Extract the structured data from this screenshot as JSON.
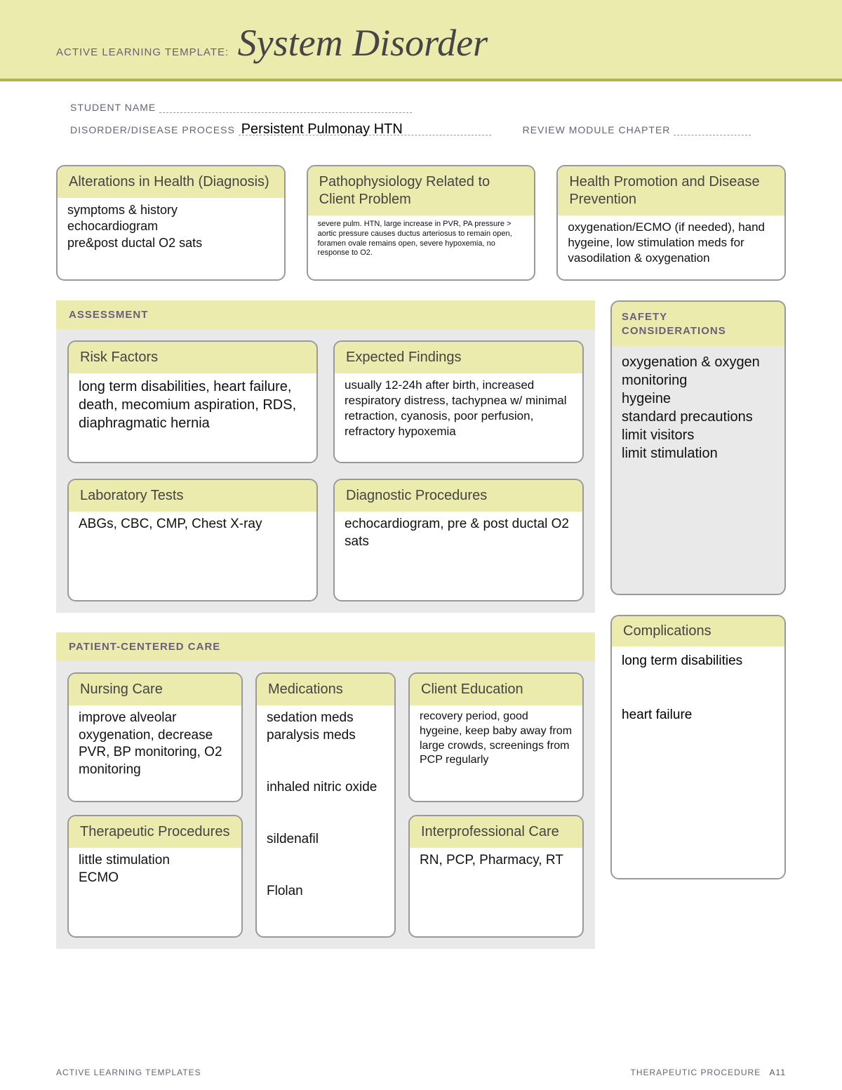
{
  "colors": {
    "band_bg": "#ecebae",
    "band_border": "#b5b34f",
    "section_bg": "#e9e9e9",
    "box_border": "#999999",
    "label_text": "#6a5f7a",
    "title_text": "#454545",
    "body_text": "#111111"
  },
  "header": {
    "prefix": "ACTIVE LEARNING TEMPLATE:",
    "title": "System Disorder"
  },
  "meta": {
    "student_label": "STUDENT NAME",
    "student_value": "",
    "disorder_label": "DISORDER/DISEASE PROCESS",
    "disorder_value": "Persistent Pulmonay HTN",
    "review_label": "REVIEW MODULE CHAPTER",
    "review_value": ""
  },
  "top": {
    "alterations": {
      "title": "Alterations in Health (Diagnosis)",
      "body": "symptoms & history\nechocardiogram\npre&post ductal O2 sats"
    },
    "patho": {
      "title": "Pathophysiology Related to Client Problem",
      "body": "severe pulm. HTN, large increase in PVR, PA pressure > aortic pressure causes ductus arteriosus to remain open, foramen ovale remains open, severe hypoxemia, no response to O2."
    },
    "promotion": {
      "title": "Health Promotion and Disease Prevention",
      "body": "oxygenation/ECMO (if needed), hand hygeine, low stimulation meds for vasodilation & oxygenation"
    }
  },
  "assessment": {
    "section_title": "ASSESSMENT",
    "risk": {
      "title": "Risk Factors",
      "body": "long term disabilities, heart failure, death, mecomium aspiration, RDS, diaphragmatic hernia"
    },
    "expected": {
      "title": "Expected Findings",
      "body": "usually 12-24h after birth, increased respiratory distress, tachypnea w/ minimal retraction, cyanosis, poor perfusion, refractory hypoxemia"
    },
    "labs": {
      "title": "Laboratory Tests",
      "body": "ABGs, CBC, CMP, Chest X-ray"
    },
    "diag": {
      "title": "Diagnostic Procedures",
      "body": "echocardiogram, pre & post ductal O2 sats"
    }
  },
  "pcc": {
    "section_title": "PATIENT-CENTERED CARE",
    "nursing": {
      "title": "Nursing Care",
      "body": "improve alveolar oxygenation, decrease PVR, BP monitoring, O2 monitoring"
    },
    "therapeutic": {
      "title": "Therapeutic Procedures",
      "body": "little stimulation\nECMO"
    },
    "meds": {
      "title": "Medications",
      "body": "sedation meds\nparalysis meds\n\ninhaled nitric oxide\n\nsildenafil\n\nFlolan"
    },
    "education": {
      "title": "Client Education",
      "body": "recovery period, good hygeine, keep baby away from large crowds, screenings from PCP regularly"
    },
    "interprof": {
      "title": "Interprofessional Care",
      "body": "RN, PCP, Pharmacy, RT"
    }
  },
  "safety": {
    "title": "SAFETY CONSIDERATIONS",
    "body": "oxygenation & oxygen monitoring\nhygeine\nstandard precautions\nlimit visitors\nlimit stimulation"
  },
  "complications": {
    "title": "Complications",
    "body": "long term disabilities\n\nheart failure"
  },
  "footer": {
    "left": "ACTIVE LEARNING TEMPLATES",
    "right_label": "THERAPEUTIC PROCEDURE",
    "right_page": "A11"
  }
}
